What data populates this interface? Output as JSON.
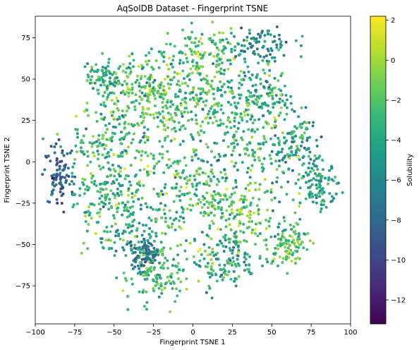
{
  "chart_data": {
    "type": "scatter",
    "title": "AqSolDB Dataset - Fingerprint TSNE",
    "xlabel": "Fingerprint TSNE 1",
    "ylabel": "Fingerprint TSNE 2",
    "xlim": [
      -100,
      100
    ],
    "ylim": [
      -98,
      88
    ],
    "x_ticks": [
      -100,
      -75,
      -50,
      -25,
      0,
      25,
      50,
      75,
      100
    ],
    "x_tick_labels": [
      "−100",
      "−75",
      "−50",
      "−25",
      "0",
      "25",
      "50",
      "75",
      "100"
    ],
    "y_ticks": [
      -75,
      -50,
      -25,
      0,
      25,
      50,
      75
    ],
    "y_tick_labels": [
      "−75",
      "−50",
      "−25",
      "0",
      "25",
      "50",
      "75"
    ],
    "grid": false,
    "colormap": "viridis",
    "colorbar": {
      "label": "Solubility",
      "min": -13.2,
      "max": 2.2,
      "ticks": [
        2,
        0,
        -2,
        -4,
        -6,
        -8,
        -10,
        -12
      ],
      "tick_labels": [
        "2",
        "0",
        "−2",
        "−4",
        "−6",
        "−8",
        "−10",
        "−12"
      ]
    },
    "clusters": [
      {
        "x": 27,
        "y": -30,
        "spread": [
          10,
          9
        ],
        "value": -1.0
      },
      {
        "x": -30,
        "y": 43,
        "spread": [
          13,
          10
        ],
        "value": -1.5
      },
      {
        "x": 5,
        "y": 65,
        "spread": [
          12,
          10
        ],
        "value": -2.2
      },
      {
        "x": 40,
        "y": 72,
        "spread": [
          12,
          5
        ],
        "value": -5.5
      },
      {
        "x": -85,
        "y": -8,
        "spread": [
          5,
          10
        ],
        "value": -8.5
      },
      {
        "x": 60,
        "y": -50,
        "spread": [
          7,
          6
        ],
        "value": -2.5
      },
      {
        "x": 65,
        "y": 10,
        "spread": [
          8,
          10
        ],
        "value": -5.0
      },
      {
        "x": -50,
        "y": 12,
        "spread": [
          12,
          12
        ],
        "value": -3.0
      },
      {
        "x": 30,
        "y": 15,
        "spread": [
          12,
          12
        ],
        "value": -2.5
      },
      {
        "x": -15,
        "y": 30,
        "spread": [
          12,
          12
        ],
        "value": -2.0
      },
      {
        "x": -40,
        "y": -40,
        "spread": [
          12,
          10
        ],
        "value": -3.5
      },
      {
        "x": -25,
        "y": -70,
        "spread": [
          10,
          8
        ],
        "value": -3.0
      },
      {
        "x": 0,
        "y": -15,
        "spread": [
          14,
          14
        ],
        "value": -2.8
      },
      {
        "x": -50,
        "y": -15,
        "spread": [
          10,
          10
        ],
        "value": -3.0
      },
      {
        "x": 20,
        "y": -60,
        "spread": [
          10,
          8
        ],
        "value": -4.0
      },
      {
        "x": 80,
        "y": -15,
        "spread": [
          6,
          6
        ],
        "value": -4.5
      },
      {
        "x": 10,
        "y": 35,
        "spread": [
          12,
          10
        ],
        "value": -3.0
      },
      {
        "x": -55,
        "y": 50,
        "spread": [
          6,
          5
        ],
        "value": -3.5
      },
      {
        "x": 45,
        "y": 40,
        "spread": [
          8,
          8
        ],
        "value": -3.5
      },
      {
        "x": -30,
        "y": -55,
        "spread": [
          5,
          4
        ],
        "value": -7.5
      }
    ]
  }
}
